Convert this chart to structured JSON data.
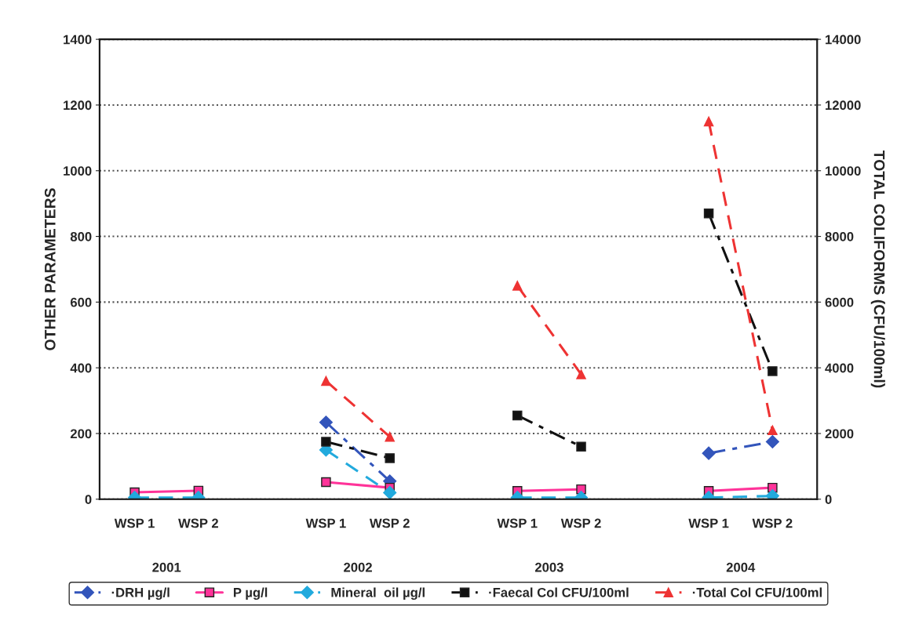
{
  "chart_data": {
    "type": "line",
    "categories": [
      "WSP 1",
      "WSP 2",
      null,
      "WSP 1",
      "WSP 2",
      null,
      "WSP 1",
      "WSP 2",
      null,
      "WSP 1",
      "WSP 2"
    ],
    "ylabel": "OTHER PARAMETERS",
    "y2label": "TOTAL COLIFORMS (CFU/100ml)",
    "ylim": [
      0,
      1400
    ],
    "yticks": [
      0,
      200,
      400,
      600,
      800,
      1000,
      1200,
      1400
    ],
    "y2lim": [
      0,
      14000
    ],
    "y2ticks": [
      0,
      2000,
      4000,
      6000,
      8000,
      10000,
      12000,
      14000
    ],
    "annotations": [
      "2001",
      "2002",
      "2003",
      "2004"
    ],
    "grid": "y",
    "legend": "bottom",
    "series": [
      {
        "name": "·DRH µg/l",
        "color": "#3355bb",
        "marker": "diamond",
        "line_style": "dashdot",
        "values": [
          null,
          null,
          null,
          234,
          55,
          null,
          null,
          null,
          null,
          140,
          175
        ]
      },
      {
        "name": "P µg/l",
        "color": "#ff3399",
        "marker": "square",
        "line_style": "solid",
        "values": [
          21,
          26,
          null,
          52,
          35,
          null,
          25,
          30,
          null,
          25,
          35
        ]
      },
      {
        "name": "Mineral  oil µg/l",
        "color": "#22aadd",
        "marker": "diamond",
        "line_style": "dashed",
        "values": [
          5,
          5,
          null,
          150,
          20,
          null,
          5,
          5,
          null,
          5,
          10
        ]
      },
      {
        "name": "·Faecal Col CFU/100ml",
        "color": "#111111",
        "marker": "square",
        "line_style": "dashdot",
        "axis": "y2",
        "values": [
          null,
          null,
          null,
          1750,
          1250,
          null,
          2550,
          1600,
          null,
          8700,
          3900
        ]
      },
      {
        "name": "·Total Col CFU/100ml",
        "color": "#ee3333",
        "marker": "triangle",
        "line_style": "dashed",
        "axis": "y2",
        "values": [
          null,
          null,
          null,
          3600,
          1900,
          null,
          6500,
          3800,
          null,
          11500,
          2100
        ]
      }
    ]
  }
}
